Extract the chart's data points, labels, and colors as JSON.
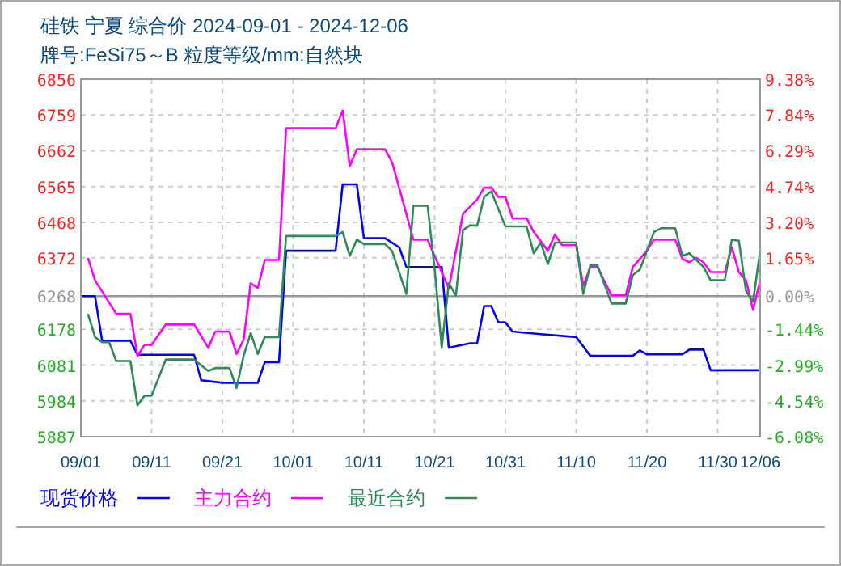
{
  "chart_data": {
    "type": "line",
    "title": "硅铁  宁夏  综合价  2024-09-01 - 2024-12-06",
    "subtitle": "牌号:FeSi75～B 粒度等级/mm:自然块",
    "xlim": [
      "2024-09-01",
      "2024-12-06"
    ],
    "xticks": [
      {
        "value": "2024-09-01",
        "label": "09/01"
      },
      {
        "value": "2024-09-11",
        "label": "09/11"
      },
      {
        "value": "2024-09-21",
        "label": "09/21"
      },
      {
        "value": "2024-10-01",
        "label": "10/01"
      },
      {
        "value": "2024-10-11",
        "label": "10/11"
      },
      {
        "value": "2024-10-21",
        "label": "10/21"
      },
      {
        "value": "2024-10-31",
        "label": "10/31"
      },
      {
        "value": "2024-11-10",
        "label": "11/10"
      },
      {
        "value": "2024-11-20",
        "label": "11/20"
      },
      {
        "value": "2024-11-30",
        "label": "11/30"
      },
      {
        "value": "2024-12-06",
        "label": "12/06"
      }
    ],
    "ylim": [
      5887,
      6856
    ],
    "yticks": [
      5887,
      5984,
      6081,
      6178,
      6268,
      6372,
      6468,
      6565,
      6662,
      6759,
      6856
    ],
    "y2lim": [
      -6.08,
      9.38
    ],
    "y2ticks": [
      {
        "value": -6.08,
        "label": "-6.08%"
      },
      {
        "value": -4.54,
        "label": "-4.54%"
      },
      {
        "value": -2.99,
        "label": "-2.99%"
      },
      {
        "value": -1.44,
        "label": "-1.44%"
      },
      {
        "value": 0,
        "label": "0.00%"
      },
      {
        "value": 1.65,
        "label": "1.65%"
      },
      {
        "value": 3.2,
        "label": "3.20%"
      },
      {
        "value": 4.74,
        "label": "4.74%"
      },
      {
        "value": 6.29,
        "label": "6.29%"
      },
      {
        "value": 7.84,
        "label": "7.84%"
      },
      {
        "value": 9.38,
        "label": "9.38%"
      }
    ],
    "grid": true,
    "legend": "bottom",
    "marker": "none",
    "line_style": "solid",
    "ref_lines": [
      {
        "axis": "y",
        "value": 6268,
        "color": "#999999"
      }
    ],
    "series": [
      {
        "name": "现货价格",
        "color": "#0000ff",
        "x": [
          "2024-09-01",
          "2024-09-03",
          "2024-09-04",
          "2024-09-08",
          "2024-09-09",
          "2024-09-17",
          "2024-09-18",
          "2024-09-21",
          "2024-09-26",
          "2024-09-27",
          "2024-09-29",
          "2024-09-30",
          "2024-10-07",
          "2024-10-08",
          "2024-10-10",
          "2024-10-11",
          "2024-10-14",
          "2024-10-16",
          "2024-10-17",
          "2024-10-22",
          "2024-10-23",
          "2024-10-26",
          "2024-10-27",
          "2024-10-28",
          "2024-10-29",
          "2024-10-30",
          "2024-10-31",
          "2024-11-01",
          "2024-11-05",
          "2024-11-10",
          "2024-11-12",
          "2024-11-18",
          "2024-11-19",
          "2024-11-20",
          "2024-11-25",
          "2024-11-26",
          "2024-11-28",
          "2024-11-29",
          "2024-12-06"
        ],
        "values": [
          6268,
          6268,
          6147,
          6147,
          6109,
          6109,
          6040,
          6033,
          6033,
          6089,
          6089,
          6391,
          6391,
          6571,
          6571,
          6425,
          6425,
          6400,
          6347,
          6347,
          6128,
          6140,
          6140,
          6241,
          6241,
          6197,
          6197,
          6172,
          6165,
          6157,
          6106,
          6106,
          6121,
          6110,
          6110,
          6123,
          6123,
          6067,
          6067
        ]
      },
      {
        "name": "主力合约",
        "color": "#ff00ff",
        "x": [
          "2024-09-02",
          "2024-09-03",
          "2024-09-06",
          "2024-09-08",
          "2024-09-09",
          "2024-09-10",
          "2024-09-11",
          "2024-09-13",
          "2024-09-17",
          "2024-09-19",
          "2024-09-20",
          "2024-09-22",
          "2024-09-23",
          "2024-09-24",
          "2024-09-25",
          "2024-09-26",
          "2024-09-27",
          "2024-09-29",
          "2024-09-30",
          "2024-10-07",
          "2024-10-08",
          "2024-10-09",
          "2024-10-10",
          "2024-10-14",
          "2024-10-15",
          "2024-10-18",
          "2024-10-20",
          "2024-10-22",
          "2024-10-23",
          "2024-10-25",
          "2024-10-27",
          "2024-10-28",
          "2024-10-29",
          "2024-10-30",
          "2024-10-31",
          "2024-11-01",
          "2024-11-03",
          "2024-11-04",
          "2024-11-06",
          "2024-11-07",
          "2024-11-08",
          "2024-11-10",
          "2024-11-11",
          "2024-11-12",
          "2024-11-13",
          "2024-11-15",
          "2024-11-17",
          "2024-11-18",
          "2024-11-20",
          "2024-11-21",
          "2024-11-24",
          "2024-11-25",
          "2024-11-26",
          "2024-11-27",
          "2024-11-28",
          "2024-11-29",
          "2024-12-01",
          "2024-12-02",
          "2024-12-03",
          "2024-12-04",
          "2024-12-05",
          "2024-12-06"
        ],
        "values": [
          6372,
          6311,
          6220,
          6220,
          6106,
          6136,
          6136,
          6191,
          6191,
          6128,
          6172,
          6172,
          6111,
          6150,
          6303,
          6290,
          6366,
          6366,
          6723,
          6723,
          6771,
          6621,
          6666,
          6666,
          6630,
          6421,
          6421,
          6333,
          6289,
          6491,
          6530,
          6562,
          6562,
          6537,
          6537,
          6479,
          6479,
          6442,
          6391,
          6435,
          6406,
          6406,
          6296,
          6347,
          6347,
          6270,
          6270,
          6347,
          6391,
          6421,
          6421,
          6369,
          6360,
          6372,
          6360,
          6333,
          6333,
          6400,
          6333,
          6311,
          6230,
          6311
        ]
      },
      {
        "name": "最近合约",
        "color": "#2e8b57",
        "x": [
          "2024-09-02",
          "2024-09-03",
          "2024-09-04",
          "2024-09-05",
          "2024-09-06",
          "2024-09-08",
          "2024-09-09",
          "2024-09-10",
          "2024-09-11",
          "2024-09-13",
          "2024-09-17",
          "2024-09-19",
          "2024-09-20",
          "2024-09-22",
          "2024-09-23",
          "2024-09-24",
          "2024-09-25",
          "2024-09-26",
          "2024-09-27",
          "2024-09-29",
          "2024-09-30",
          "2024-10-07",
          "2024-10-08",
          "2024-10-09",
          "2024-10-10",
          "2024-10-11",
          "2024-10-14",
          "2024-10-15",
          "2024-10-17",
          "2024-10-18",
          "2024-10-20",
          "2024-10-21",
          "2024-10-22",
          "2024-10-23",
          "2024-10-24",
          "2024-10-25",
          "2024-10-26",
          "2024-10-27",
          "2024-10-28",
          "2024-10-29",
          "2024-10-31",
          "2024-11-03",
          "2024-11-04",
          "2024-11-05",
          "2024-11-06",
          "2024-11-07",
          "2024-11-10",
          "2024-11-11",
          "2024-11-12",
          "2024-11-13",
          "2024-11-15",
          "2024-11-17",
          "2024-11-18",
          "2024-11-19",
          "2024-11-21",
          "2024-11-22",
          "2024-11-24",
          "2024-11-25",
          "2024-11-26",
          "2024-11-28",
          "2024-11-29",
          "2024-12-01",
          "2024-12-02",
          "2024-12-03",
          "2024-12-04",
          "2024-12-05",
          "2024-12-06"
        ],
        "values": [
          6220,
          6157,
          6143,
          6143,
          6092,
          6092,
          5972,
          5998,
          5998,
          6096,
          6096,
          6065,
          6073,
          6073,
          6019,
          6106,
          6168,
          6111,
          6157,
          6157,
          6431,
          6431,
          6442,
          6377,
          6421,
          6409,
          6409,
          6390,
          6274,
          6513,
          6513,
          6342,
          6128,
          6303,
          6270,
          6447,
          6460,
          6459,
          6537,
          6552,
          6457,
          6457,
          6384,
          6413,
          6355,
          6413,
          6413,
          6274,
          6352,
          6352,
          6248,
          6248,
          6325,
          6340,
          6442,
          6452,
          6452,
          6377,
          6384,
          6347,
          6311,
          6311,
          6421,
          6418,
          6282,
          6253,
          6391
        ]
      }
    ]
  }
}
